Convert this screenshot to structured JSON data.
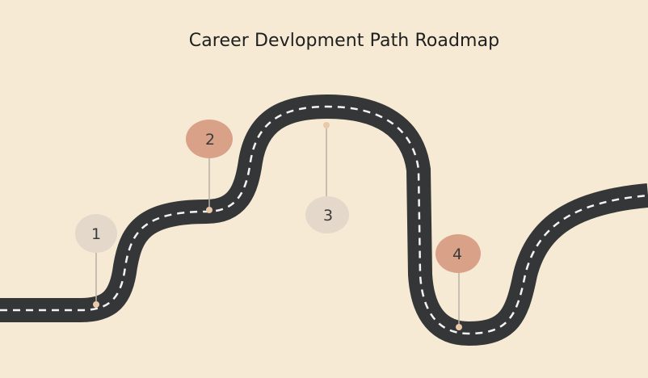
{
  "title": "Career Devlopment Path Roadmap",
  "colors": {
    "background": "#f6ead4",
    "road": "#343638",
    "road_dash": "#f4f4f4",
    "marker_accent": "#d9a188",
    "marker_neutral": "#e3d8c9",
    "pin_line": "#b8b0a6"
  },
  "milestones": [
    {
      "label": "1",
      "style": "neutral"
    },
    {
      "label": "2",
      "style": "accent"
    },
    {
      "label": "3",
      "style": "neutral"
    },
    {
      "label": "4",
      "style": "accent"
    }
  ]
}
